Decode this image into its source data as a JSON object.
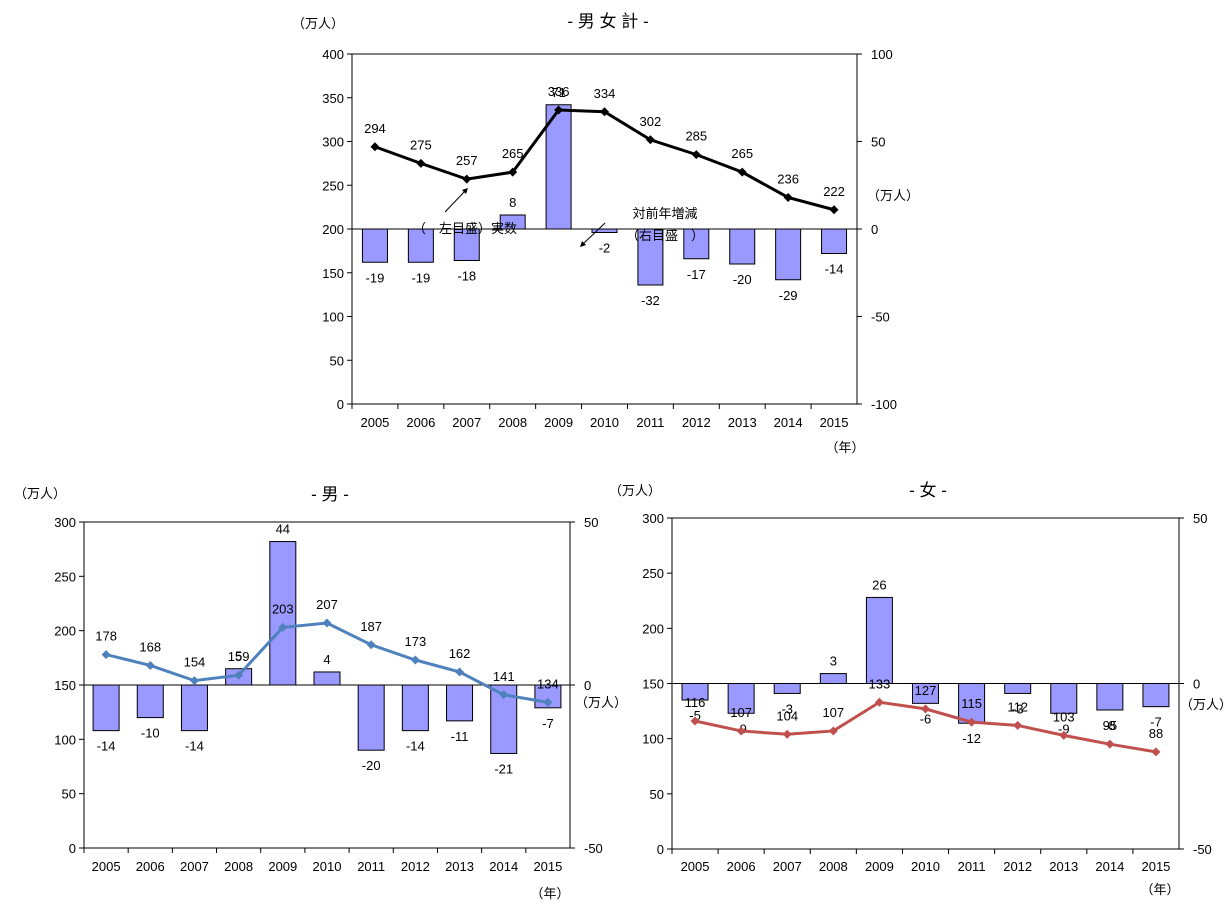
{
  "chart_data": [
    {
      "type": "bar",
      "title": "- 男 女 計 -",
      "categories": [
        "2005",
        "2006",
        "2007",
        "2008",
        "2009",
        "2010",
        "2011",
        "2012",
        "2013",
        "2014",
        "2015"
      ],
      "x_unit": "（年）",
      "y_unit_left": "（万人）",
      "y_unit_right": "（万人）",
      "ylim_left": [
        0,
        400
      ],
      "yticks_left": [
        0,
        50,
        100,
        150,
        200,
        250,
        300,
        350,
        400
      ],
      "ylim_right": [
        -100,
        100
      ],
      "yticks_right": [
        -100,
        -50,
        0,
        50,
        100
      ],
      "series": [
        {
          "name": "実数",
          "axis": "left",
          "kind": "line",
          "color": "#000000",
          "values": [
            294,
            275,
            257,
            265,
            336,
            334,
            302,
            285,
            265,
            236,
            222
          ]
        },
        {
          "name": "対前年増減",
          "axis": "right",
          "kind": "bar",
          "color": "#9999ff",
          "values": [
            -19,
            -19,
            -18,
            8,
            71,
            -2,
            -32,
            -17,
            -20,
            -29,
            -14
          ]
        }
      ],
      "annotations": {
        "line_note": "（　左目盛）実数",
        "bar_note_1": "対前年増減",
        "bar_note_2": "（右目盛　）"
      }
    },
    {
      "type": "bar",
      "title": "- 男 -",
      "categories": [
        "2005",
        "2006",
        "2007",
        "2008",
        "2009",
        "2010",
        "2011",
        "2012",
        "2013",
        "2014",
        "2015"
      ],
      "x_unit": "（年）",
      "y_unit_left": "（万人）",
      "y_unit_right": "（万人）",
      "ylim_left": [
        0,
        300
      ],
      "yticks_left": [
        0,
        50,
        100,
        150,
        200,
        250,
        300
      ],
      "ylim_right": [
        -50,
        50
      ],
      "yticks_right": [
        -50,
        0,
        50
      ],
      "series": [
        {
          "name": "実数",
          "axis": "left",
          "kind": "line",
          "color": "#4f81bd",
          "values": [
            178,
            168,
            154,
            159,
            203,
            207,
            187,
            173,
            162,
            141,
            134
          ]
        },
        {
          "name": "対前年増減",
          "axis": "right",
          "kind": "bar",
          "color": "#9999ff",
          "values": [
            -14,
            -10,
            -14,
            5,
            44,
            4,
            -20,
            -14,
            -11,
            -21,
            -7
          ]
        }
      ]
    },
    {
      "type": "bar",
      "title": "- 女 -",
      "categories": [
        "2005",
        "2006",
        "2007",
        "2008",
        "2009",
        "2010",
        "2011",
        "2012",
        "2013",
        "2014",
        "2015"
      ],
      "x_unit": "（年）",
      "y_unit_left": "（万人）",
      "y_unit_right": "（万人）",
      "ylim_left": [
        0,
        300
      ],
      "yticks_left": [
        0,
        50,
        100,
        150,
        200,
        250,
        300
      ],
      "ylim_right": [
        -50,
        50
      ],
      "yticks_right": [
        -50,
        0,
        50
      ],
      "series": [
        {
          "name": "実数",
          "axis": "left",
          "kind": "line",
          "color": "#c0504d",
          "values": [
            116,
            107,
            104,
            107,
            133,
            127,
            115,
            112,
            103,
            95,
            88
          ]
        },
        {
          "name": "対前年増減",
          "axis": "right",
          "kind": "bar",
          "color": "#9999ff",
          "values": [
            -5,
            -9,
            -3,
            3,
            26,
            -6,
            -12,
            -3,
            -9,
            -8,
            -7
          ]
        }
      ]
    }
  ]
}
